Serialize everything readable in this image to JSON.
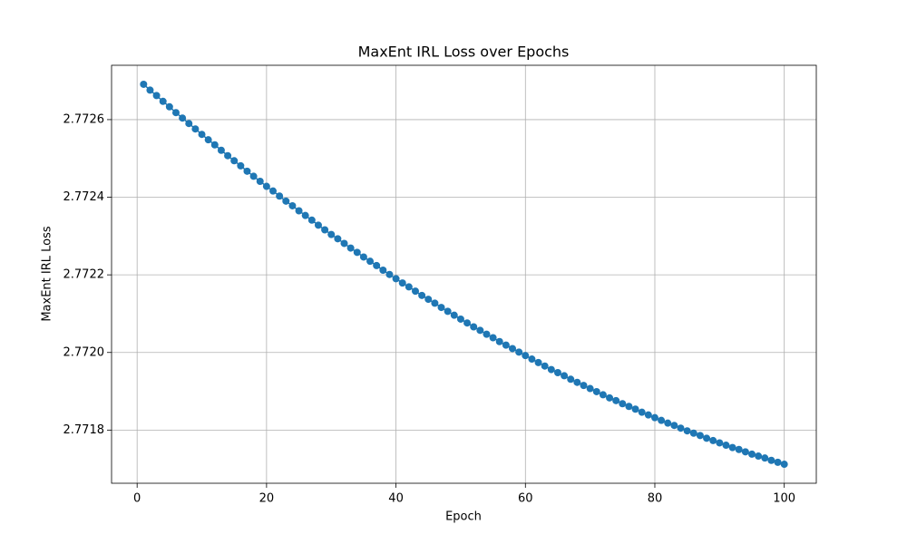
{
  "chart_data": {
    "type": "line",
    "title": "MaxEnt IRL Loss over Epochs",
    "x_label": "Epoch",
    "y_label": "MaxEnt IRL Loss",
    "x": [
      1,
      2,
      3,
      4,
      5,
      6,
      7,
      8,
      9,
      10,
      11,
      12,
      13,
      14,
      15,
      16,
      17,
      18,
      19,
      20,
      21,
      22,
      23,
      24,
      25,
      26,
      27,
      28,
      29,
      30,
      31,
      32,
      33,
      34,
      35,
      36,
      37,
      38,
      39,
      40,
      41,
      42,
      43,
      44,
      45,
      46,
      47,
      48,
      49,
      50,
      51,
      52,
      53,
      54,
      55,
      56,
      57,
      58,
      59,
      60,
      61,
      62,
      63,
      64,
      65,
      66,
      67,
      68,
      69,
      70,
      71,
      72,
      73,
      74,
      75,
      76,
      77,
      78,
      79,
      80,
      81,
      82,
      83,
      84,
      85,
      86,
      87,
      88,
      89,
      90,
      91,
      92,
      93,
      94,
      95,
      96,
      97,
      98,
      99,
      100
    ],
    "series": [
      {
        "color": "#1f77b4",
        "marker": "circle",
        "values": [
          2.772691,
          2.772676,
          2.772662,
          2.772647,
          2.772633,
          2.772618,
          2.772604,
          2.77259,
          2.772576,
          2.772562,
          2.772548,
          2.772535,
          2.772521,
          2.772507,
          2.772494,
          2.772481,
          2.772467,
          2.772454,
          2.772441,
          2.772428,
          2.772416,
          2.772403,
          2.77239,
          2.772378,
          2.772365,
          2.772353,
          2.772341,
          2.772328,
          2.772316,
          2.772304,
          2.772293,
          2.772281,
          2.772269,
          2.772258,
          2.772246,
          2.772235,
          2.772224,
          2.772212,
          2.772201,
          2.77219,
          2.772179,
          2.772169,
          2.772158,
          2.772147,
          2.772137,
          2.772127,
          2.772116,
          2.772106,
          2.772096,
          2.772086,
          2.772076,
          2.772066,
          2.772057,
          2.772047,
          2.772038,
          2.772028,
          2.772019,
          2.77201,
          2.772001,
          2.771992,
          2.771983,
          2.771974,
          2.771965,
          2.771956,
          2.771948,
          2.77194,
          2.771931,
          2.771923,
          2.771915,
          2.771907,
          2.771899,
          2.771891,
          2.771883,
          2.771876,
          2.771868,
          2.771861,
          2.771854,
          2.771846,
          2.771839,
          2.771832,
          2.771825,
          2.771818,
          2.771812,
          2.771805,
          2.771798,
          2.771792,
          2.771786,
          2.771779,
          2.771773,
          2.771767,
          2.771761,
          2.771755,
          2.77175,
          2.771744,
          2.771738,
          2.771733,
          2.771728,
          2.771722,
          2.771717,
          2.771712
        ]
      }
    ],
    "xlim": [
      -3.95,
      104.95
    ],
    "xticks": [
      0,
      20,
      40,
      60,
      80,
      100
    ],
    "ylim": [
      2.771663,
      2.77274
    ],
    "yticks": [
      2.7718,
      {
        "value": 2.772,
        "label": "2.7720"
      },
      2.7722,
      2.7724,
      2.7726
    ],
    "grid": true
  }
}
